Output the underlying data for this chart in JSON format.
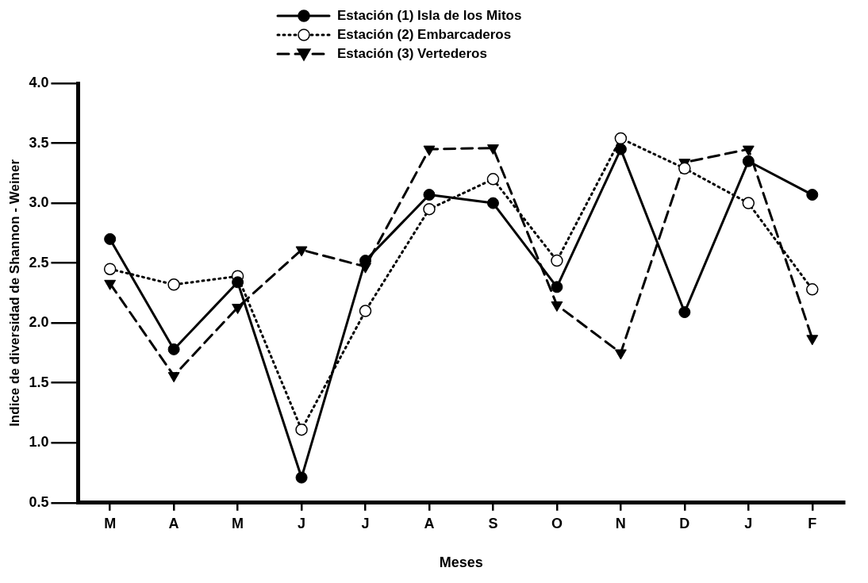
{
  "chart_data": {
    "type": "line",
    "xlabel": "Meses",
    "ylabel": "Indice de diversidad de Shannon - Weiner",
    "categories": [
      "M",
      "A",
      "M",
      "J",
      "J",
      "A",
      "S",
      "O",
      "N",
      "D",
      "J",
      "F"
    ],
    "series": [
      {
        "name": "Estación (1) Isla de los Mitos",
        "color": "#000000",
        "marker": "circle",
        "line_style": "solid",
        "values": [
          2.7,
          1.78,
          2.34,
          0.71,
          2.52,
          3.07,
          3.0,
          2.3,
          3.45,
          2.09,
          3.35,
          3.07
        ]
      },
      {
        "name": "Estación (2) Embarcaderos",
        "color": "#000000",
        "marker": "open-circle",
        "line_style": "dotted",
        "values": [
          2.45,
          2.32,
          2.39,
          1.11,
          2.1,
          2.95,
          3.2,
          2.52,
          3.54,
          3.29,
          3.0,
          2.28
        ]
      },
      {
        "name": "Estación (3) Vertederos",
        "color": "#000000",
        "marker": "triangle-down",
        "line_style": "dashed",
        "values": [
          2.33,
          1.56,
          2.13,
          2.61,
          2.47,
          3.45,
          3.46,
          2.15,
          1.75,
          3.34,
          3.45,
          1.87
        ]
      }
    ],
    "ylim": [
      0.5,
      4.0
    ],
    "yticks": [
      {
        "value": 0.5,
        "label": "0.5"
      },
      {
        "value": 1,
        "label": "1.0"
      },
      {
        "value": 1.5,
        "label": "1.5"
      },
      {
        "value": 2,
        "label": "2.0"
      },
      {
        "value": 2.5,
        "label": "2.5"
      },
      {
        "value": 3,
        "label": "3.0"
      },
      {
        "value": 3.5,
        "label": "3.5"
      },
      {
        "value": 4,
        "label": "4.0"
      }
    ],
    "grid": false,
    "legend": "top"
  }
}
